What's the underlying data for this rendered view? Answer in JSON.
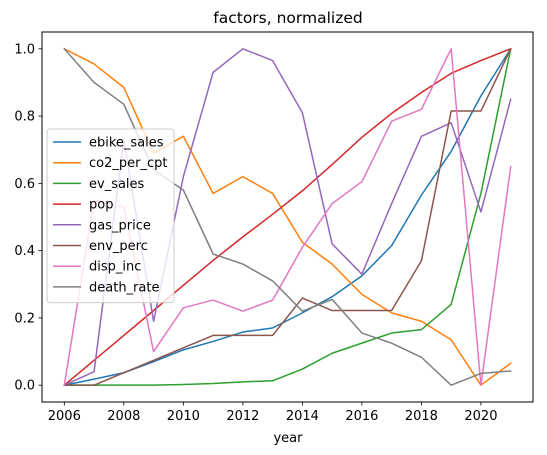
{
  "chart_data": {
    "type": "line",
    "title": "factors, normalized",
    "xlabel": "year",
    "ylabel": "",
    "xlim": [
      2005.25,
      2021.75
    ],
    "ylim": [
      -0.05,
      1.05
    ],
    "x_ticks": [
      2006,
      2008,
      2010,
      2012,
      2014,
      2016,
      2018,
      2020
    ],
    "y_ticks": [
      0.0,
      0.2,
      0.4,
      0.6,
      0.8,
      1.0
    ],
    "x_tick_labels": [
      "2006",
      "2008",
      "2010",
      "2012",
      "2014",
      "2016",
      "2018",
      "2020"
    ],
    "y_tick_labels": [
      "0.0",
      "0.2",
      "0.4",
      "0.6",
      "0.8",
      "1.0"
    ],
    "legend_position": "center-left",
    "grid": false,
    "x": [
      2006,
      2007,
      2008,
      2009,
      2010,
      2011,
      2012,
      2013,
      2014,
      2015,
      2016,
      2017,
      2018,
      2019,
      2020,
      2021
    ],
    "series": [
      {
        "name": "ebike_sales",
        "color": "#1f77b4",
        "values": [
          0.0,
          0.018,
          0.037,
          0.07,
          0.105,
          0.13,
          0.158,
          0.17,
          0.215,
          0.263,
          0.325,
          0.415,
          0.565,
          0.695,
          0.86,
          1.0
        ]
      },
      {
        "name": "co2_per_cpt",
        "color": "#ff7f0e",
        "values": [
          1.0,
          0.955,
          0.885,
          0.69,
          0.74,
          0.57,
          0.62,
          0.57,
          0.425,
          0.36,
          0.27,
          0.215,
          0.19,
          0.135,
          0.0,
          0.065
        ]
      },
      {
        "name": "ev_sales",
        "color": "#2ca02c",
        "values": [
          0.0,
          0.0,
          0.0,
          0.0,
          0.002,
          0.005,
          0.01,
          0.013,
          0.048,
          0.095,
          0.125,
          0.155,
          0.165,
          0.24,
          0.57,
          1.0
        ]
      },
      {
        "name": "pop",
        "color": "#d62728",
        "values": [
          0.0,
          0.074,
          0.148,
          0.222,
          0.297,
          0.371,
          0.441,
          0.508,
          0.578,
          0.656,
          0.737,
          0.808,
          0.87,
          0.927,
          0.965,
          1.0
        ]
      },
      {
        "name": "gas_price",
        "color": "#9467bd",
        "values": [
          0.0,
          0.04,
          0.73,
          0.19,
          0.62,
          0.93,
          1.0,
          0.965,
          0.81,
          0.42,
          0.33,
          0.54,
          0.74,
          0.78,
          0.515,
          0.85
        ]
      },
      {
        "name": "env_perc",
        "color": "#8c564b",
        "values": [
          0.0,
          0.0,
          0.037,
          0.074,
          0.111,
          0.148,
          0.148,
          0.148,
          0.259,
          0.222,
          0.222,
          0.222,
          0.37,
          0.815,
          0.815,
          1.0
        ]
      },
      {
        "name": "disp_inc",
        "color": "#e377c2",
        "values": [
          0.0,
          0.55,
          0.53,
          0.1,
          0.23,
          0.253,
          0.22,
          0.253,
          0.41,
          0.54,
          0.605,
          0.785,
          0.82,
          1.0,
          0.0,
          0.65
        ]
      },
      {
        "name": "death_rate",
        "color": "#7f7f7f",
        "values": [
          1.0,
          0.9,
          0.835,
          0.64,
          0.58,
          0.39,
          0.36,
          0.31,
          0.22,
          0.255,
          0.155,
          0.125,
          0.083,
          0.0,
          0.035,
          0.042
        ]
      }
    ]
  }
}
